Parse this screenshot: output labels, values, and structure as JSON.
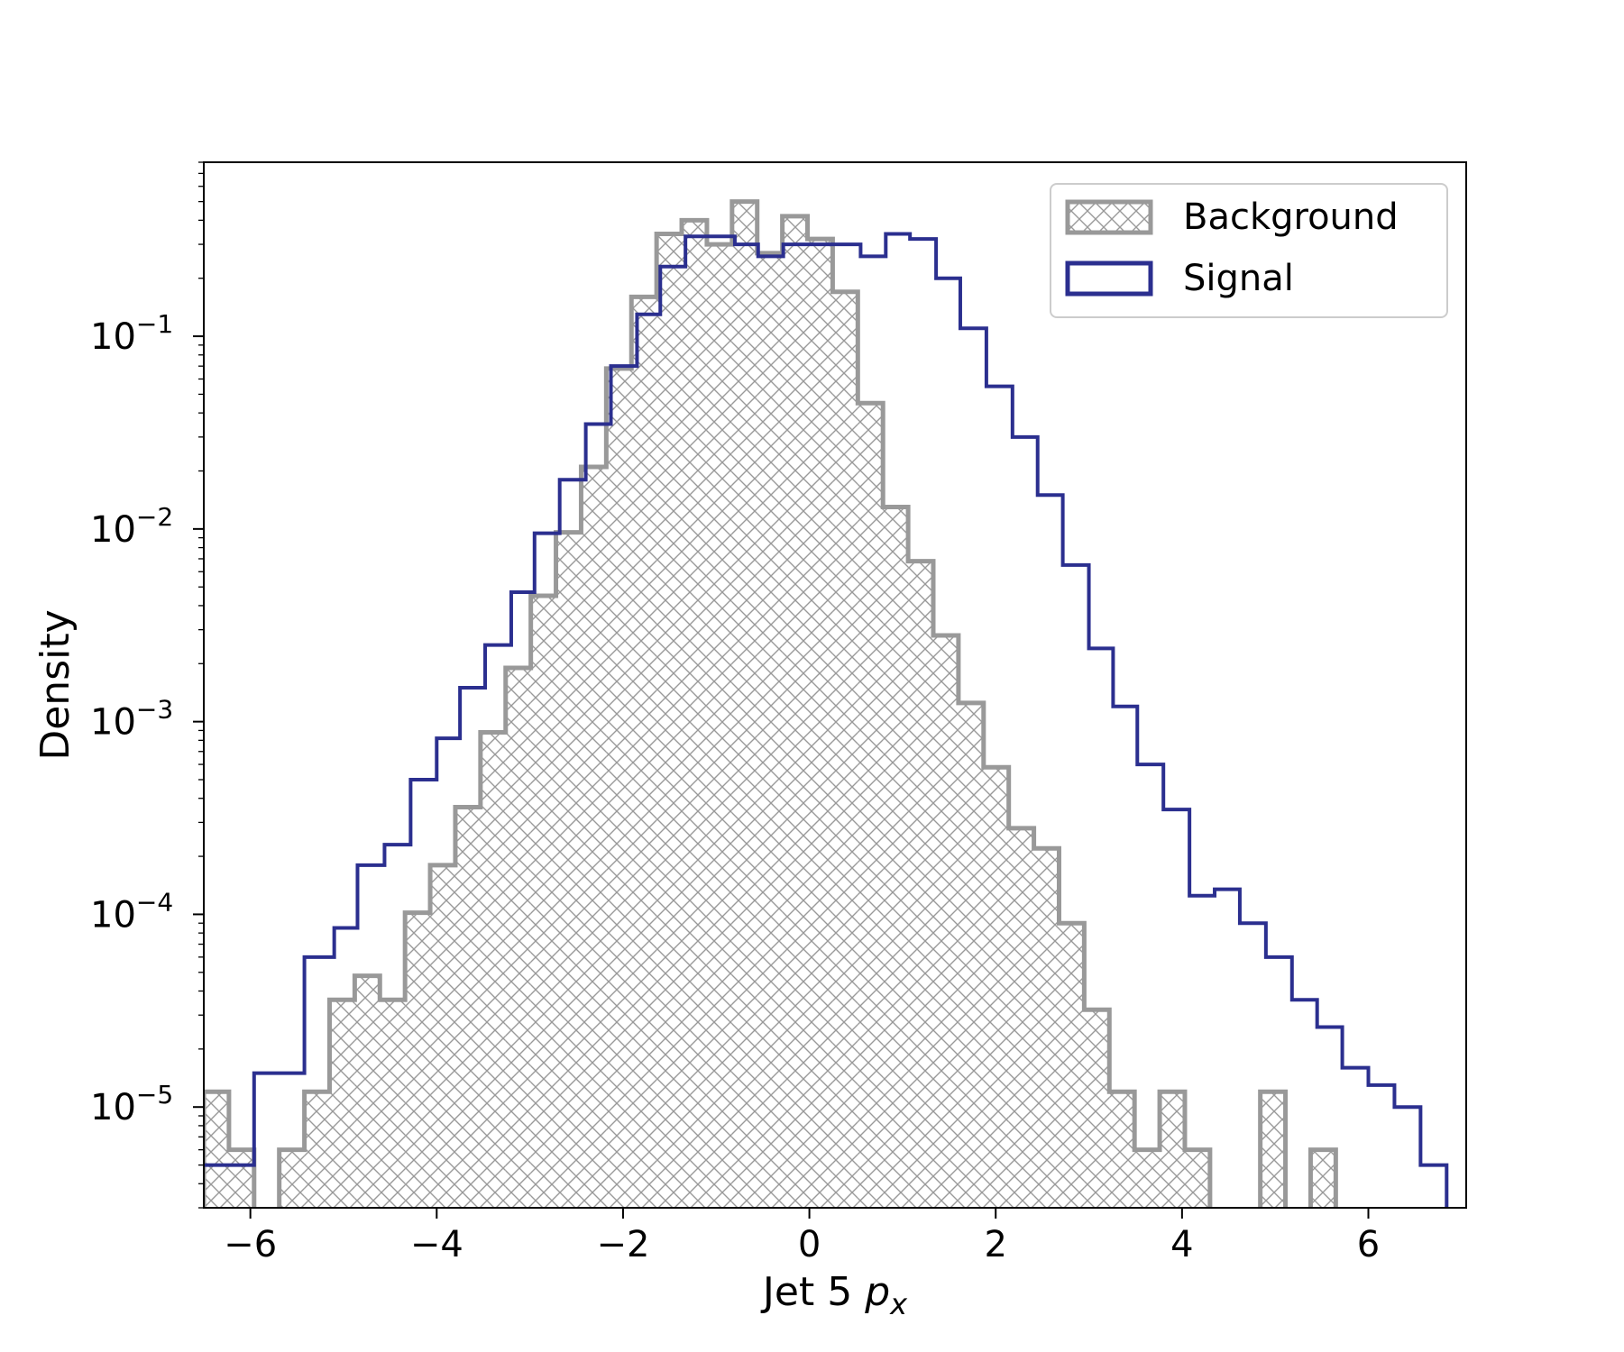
{
  "chart_data": {
    "type": "histogram",
    "xlabel": "Jet 5",
    "xlabel_math": "p",
    "xlabel_sub": "x",
    "ylabel": "Density",
    "xlim": [
      -6.5,
      7.05
    ],
    "ylim": [
      3e-06,
      0.8
    ],
    "yscale": "log",
    "x_ticks": [
      {
        "value": -6,
        "label": "−6"
      },
      {
        "value": -4,
        "label": "−4"
      },
      {
        "value": -2,
        "label": "−2"
      },
      {
        "value": 0,
        "label": "0"
      },
      {
        "value": 2,
        "label": "2"
      },
      {
        "value": 4,
        "label": "4"
      },
      {
        "value": 6,
        "label": "6"
      }
    ],
    "y_ticks": [
      {
        "exp": -1,
        "base": "10",
        "sup": "−1"
      },
      {
        "exp": -2,
        "base": "10",
        "sup": "−2"
      },
      {
        "exp": -3,
        "base": "10",
        "sup": "−3"
      },
      {
        "exp": -4,
        "base": "10",
        "sup": "−4"
      },
      {
        "exp": -5,
        "base": "10",
        "sup": "−5"
      }
    ],
    "legend": {
      "position": "upper right",
      "entries": [
        {
          "label": "Background",
          "style": "hatched",
          "color": "#999999"
        },
        {
          "label": "Signal",
          "style": "step",
          "color": "#2b2f8f"
        }
      ]
    },
    "series": [
      {
        "name": "Background",
        "color": "#999999",
        "hatch": "crosshatch",
        "bin_edges": [
          -6.5,
          -6.23,
          -5.96,
          -5.69,
          -5.42,
          -5.15,
          -4.88,
          -4.61,
          -4.34,
          -4.07,
          -3.8,
          -3.53,
          -3.26,
          -2.99,
          -2.72,
          -2.45,
          -2.18,
          -1.91,
          -1.64,
          -1.37,
          -1.1,
          -0.83,
          -0.56,
          -0.29,
          -0.02,
          0.25,
          0.52,
          0.79,
          1.06,
          1.33,
          1.6,
          1.87,
          2.14,
          2.41,
          2.68,
          2.95,
          3.22,
          3.49,
          3.76,
          4.03,
          4.3,
          4.57,
          4.84,
          5.11,
          5.38,
          5.65,
          5.92,
          6.19,
          6.46,
          6.73,
          7.0
        ],
        "values": [
          1.2e-05,
          6e-06,
          0,
          6e-06,
          1.2e-05,
          3.6e-05,
          4.8e-05,
          3.6e-05,
          0.000102,
          0.00018,
          0.00036,
          0.00088,
          0.0019,
          0.0045,
          0.0096,
          0.021,
          0.068,
          0.16,
          0.34,
          0.4,
          0.3,
          0.5,
          0.27,
          0.42,
          0.32,
          0.17,
          0.045,
          0.013,
          0.0068,
          0.0028,
          0.00125,
          0.00058,
          0.00028,
          0.00022,
          9e-05,
          3.2e-05,
          1.2e-05,
          6e-06,
          1.2e-05,
          6e-06,
          0,
          0,
          1.2e-05,
          0,
          6e-06,
          0,
          0,
          0,
          0,
          0
        ],
        "note": "per-bin density, bins of width ~0.27"
      },
      {
        "name": "Signal",
        "color": "#2b2f8f",
        "bin_edges": [
          -6.5,
          -6.1,
          -5.96,
          -5.42,
          -5.1,
          -4.85,
          -4.56,
          -4.28,
          -4.0,
          -3.75,
          -3.48,
          -3.2,
          -2.95,
          -2.68,
          -2.4,
          -2.13,
          -1.85,
          -1.6,
          -1.33,
          -1.08,
          -0.8,
          -0.55,
          -0.28,
          0,
          0.28,
          0.55,
          0.82,
          1.08,
          1.36,
          1.62,
          1.9,
          2.18,
          2.45,
          2.72,
          3.0,
          3.26,
          3.52,
          3.8,
          4.08,
          4.35,
          4.62,
          4.9,
          5.18,
          5.45,
          5.72,
          6.0,
          6.28,
          6.56,
          6.84,
          7.0
        ],
        "values": [
          5e-06,
          5e-06,
          1.5e-05,
          6e-05,
          8.5e-05,
          0.00018,
          0.00023,
          0.0005,
          0.00082,
          0.0015,
          0.0025,
          0.0047,
          0.0095,
          0.018,
          0.035,
          0.07,
          0.13,
          0.23,
          0.33,
          0.33,
          0.3,
          0.26,
          0.3,
          0.3,
          0.3,
          0.26,
          0.34,
          0.32,
          0.2,
          0.11,
          0.055,
          0.03,
          0.015,
          0.0065,
          0.0024,
          0.0012,
          0.0006,
          0.00035,
          0.000125,
          0.000135,
          9e-05,
          6e-05,
          3.6e-05,
          2.6e-05,
          1.6e-05,
          1.3e-05,
          1e-05,
          5e-06,
          0
        ],
        "note": "per-bin density step outline"
      }
    ]
  }
}
